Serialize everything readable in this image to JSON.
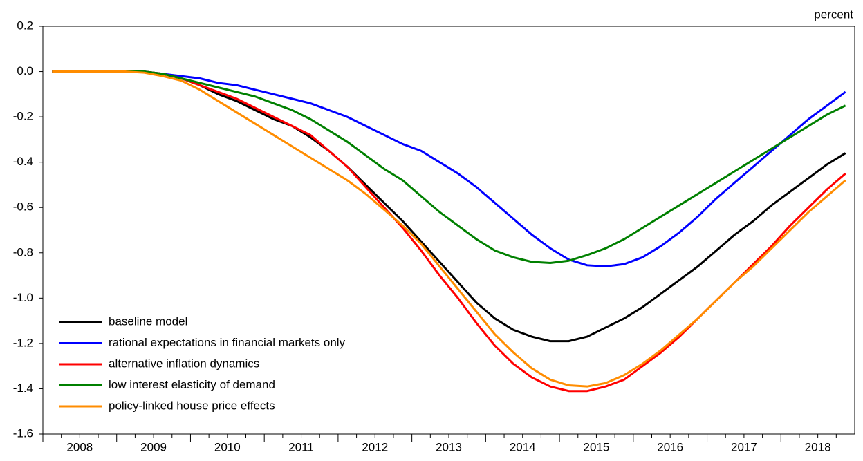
{
  "chart_data": {
    "type": "line",
    "ylabel": "percent",
    "categories": [
      "2008",
      null,
      null,
      null,
      "2009",
      null,
      null,
      null,
      "2010",
      null,
      null,
      null,
      "2011",
      null,
      null,
      null,
      "2012",
      null,
      null,
      null,
      "2013",
      null,
      null,
      null,
      "2014",
      null,
      null,
      null,
      "2015",
      null,
      null,
      null,
      "2016",
      null,
      null,
      null,
      "2017",
      null,
      null,
      null,
      "2018",
      null,
      null,
      null
    ],
    "ylim": [
      -1.6,
      0.2
    ],
    "yticks": [
      0.2,
      {
        "value": 0,
        "label": "0.0"
      },
      -0.2,
      -0.4,
      -0.6,
      -0.8,
      {
        "value": -1,
        "label": "-1.0"
      },
      -1.2,
      -1.4,
      -1.6
    ],
    "grid": false,
    "legend": "lower-left",
    "series": [
      {
        "name": "baseline model",
        "color": "#000000",
        "values": [
          0,
          0,
          0,
          0,
          0,
          0,
          -0.01,
          -0.03,
          -0.06,
          -0.1,
          -0.13,
          -0.17,
          -0.21,
          -0.24,
          -0.29,
          -0.35,
          -0.42,
          -0.5,
          -0.58,
          -0.66,
          -0.75,
          -0.84,
          -0.93,
          -1.02,
          -1.09,
          -1.14,
          -1.17,
          -1.19,
          -1.19,
          -1.17,
          -1.13,
          -1.09,
          -1.04,
          -0.98,
          -0.92,
          -0.86,
          -0.79,
          -0.72,
          -0.66,
          -0.59,
          -0.53,
          -0.47,
          -0.41,
          -0.36
        ]
      },
      {
        "name": "rational expectations in financial markets only",
        "color": "#0000ff",
        "values": [
          0,
          0,
          0,
          0,
          0,
          0,
          -0.01,
          -0.02,
          -0.03,
          -0.05,
          -0.06,
          -0.08,
          -0.1,
          -0.12,
          -0.14,
          -0.17,
          -0.2,
          -0.24,
          -0.28,
          -0.32,
          -0.35,
          -0.4,
          -0.45,
          -0.51,
          -0.58,
          -0.65,
          -0.72,
          -0.78,
          -0.83,
          -0.855,
          -0.86,
          -0.85,
          -0.82,
          -0.77,
          -0.71,
          -0.64,
          -0.56,
          -0.49,
          -0.42,
          -0.35,
          -0.28,
          -0.21,
          -0.15,
          -0.09
        ]
      },
      {
        "name": "alternative inflation dynamics",
        "color": "#ff0000",
        "values": [
          0,
          0,
          0,
          0,
          0,
          0,
          -0.01,
          -0.03,
          -0.06,
          -0.09,
          -0.12,
          -0.16,
          -0.2,
          -0.24,
          -0.28,
          -0.35,
          -0.42,
          -0.51,
          -0.6,
          -0.69,
          -0.79,
          -0.9,
          -1.0,
          -1.11,
          -1.21,
          -1.29,
          -1.35,
          -1.39,
          -1.41,
          -1.41,
          -1.39,
          -1.36,
          -1.3,
          -1.24,
          -1.17,
          -1.09,
          -1.01,
          -0.93,
          -0.85,
          -0.77,
          -0.68,
          -0.6,
          -0.52,
          -0.45
        ]
      },
      {
        "name": "low interest elasticity of demand",
        "color": "#008000",
        "values": [
          0,
          0,
          0,
          0,
          0,
          0,
          -0.01,
          -0.03,
          -0.05,
          -0.07,
          -0.09,
          -0.11,
          -0.14,
          -0.17,
          -0.21,
          -0.26,
          -0.31,
          -0.37,
          -0.43,
          -0.48,
          -0.55,
          -0.62,
          -0.68,
          -0.74,
          -0.79,
          -0.82,
          -0.84,
          -0.845,
          -0.835,
          -0.81,
          -0.78,
          -0.74,
          -0.69,
          -0.64,
          -0.59,
          -0.54,
          -0.49,
          -0.44,
          -0.39,
          -0.34,
          -0.29,
          -0.24,
          -0.19,
          -0.15
        ]
      },
      {
        "name": "policy-linked house price effects",
        "color": "#ff8c00",
        "values": [
          0,
          0,
          0,
          0,
          0,
          -0.005,
          -0.02,
          -0.04,
          -0.08,
          -0.13,
          -0.18,
          -0.23,
          -0.28,
          -0.33,
          -0.38,
          -0.43,
          -0.48,
          -0.54,
          -0.61,
          -0.68,
          -0.76,
          -0.86,
          -0.96,
          -1.06,
          -1.16,
          -1.24,
          -1.31,
          -1.36,
          -1.385,
          -1.39,
          -1.375,
          -1.34,
          -1.29,
          -1.23,
          -1.16,
          -1.09,
          -1.01,
          -0.93,
          -0.86,
          -0.78,
          -0.7,
          -0.62,
          -0.55,
          -0.48
        ]
      }
    ]
  }
}
